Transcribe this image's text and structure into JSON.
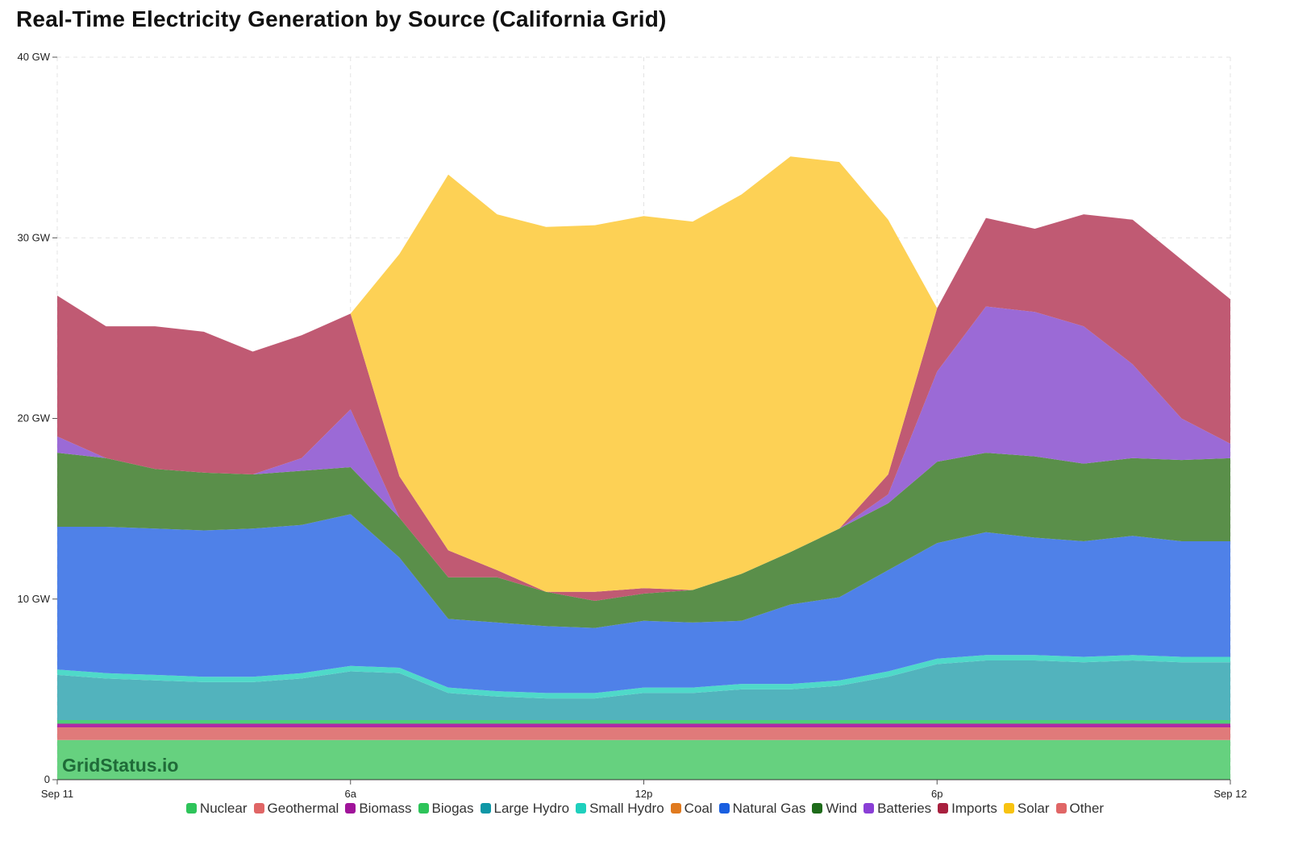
{
  "title": "Real-Time Electricity Generation by Source (California Grid)",
  "watermark": "GridStatus.io",
  "chart_data": {
    "type": "area",
    "stacked": true,
    "title": "Real-Time Electricity Generation by Source (California Grid)",
    "ylabel_unit": "GW",
    "ylim": [
      0,
      40
    ],
    "y_ticks": [
      {
        "value": 0,
        "label": "0"
      },
      {
        "value": 10,
        "label": "10 GW"
      },
      {
        "value": 20,
        "label": "20 GW"
      },
      {
        "value": 30,
        "label": "30 GW"
      },
      {
        "value": 40,
        "label": "40 GW"
      }
    ],
    "x_hours_range": [
      0,
      24
    ],
    "x_ticks": [
      {
        "hour": 0,
        "label": "Sep 11"
      },
      {
        "hour": 6,
        "label": "6a"
      },
      {
        "hour": 12,
        "label": "12p"
      },
      {
        "hour": 18,
        "label": "6p"
      },
      {
        "hour": 24,
        "label": "Sep 12"
      }
    ],
    "grid": true,
    "legend_position": "bottom",
    "x": [
      0,
      1,
      2,
      3,
      4,
      5,
      6,
      7,
      8,
      9,
      10,
      11,
      12,
      13,
      14,
      15,
      16,
      17,
      18,
      19,
      20,
      21,
      22,
      23,
      24
    ],
    "series": [
      {
        "name": "Nuclear",
        "color": "#66d17f",
        "swatch": "#2ec45a",
        "values": [
          2.2,
          2.2,
          2.2,
          2.2,
          2.2,
          2.2,
          2.2,
          2.2,
          2.2,
          2.2,
          2.2,
          2.2,
          2.2,
          2.2,
          2.2,
          2.2,
          2.2,
          2.2,
          2.2,
          2.2,
          2.2,
          2.2,
          2.2,
          2.2,
          2.2
        ]
      },
      {
        "name": "Geothermal",
        "color": "#e07a7a",
        "swatch": "#e06666",
        "values": [
          0.7,
          0.7,
          0.7,
          0.7,
          0.7,
          0.7,
          0.7,
          0.7,
          0.7,
          0.7,
          0.7,
          0.7,
          0.7,
          0.7,
          0.7,
          0.7,
          0.7,
          0.7,
          0.7,
          0.7,
          0.7,
          0.7,
          0.7,
          0.7,
          0.7
        ]
      },
      {
        "name": "Biomass",
        "color": "#b02aa6",
        "swatch": "#a0149a",
        "values": [
          0.2,
          0.2,
          0.2,
          0.2,
          0.2,
          0.2,
          0.2,
          0.2,
          0.2,
          0.2,
          0.2,
          0.2,
          0.2,
          0.2,
          0.2,
          0.2,
          0.2,
          0.2,
          0.2,
          0.2,
          0.2,
          0.2,
          0.2,
          0.2,
          0.2
        ]
      },
      {
        "name": "Biogas",
        "color": "#4fcf7a",
        "swatch": "#2ec45a",
        "values": [
          0.2,
          0.2,
          0.2,
          0.2,
          0.2,
          0.2,
          0.2,
          0.2,
          0.2,
          0.2,
          0.2,
          0.2,
          0.2,
          0.2,
          0.2,
          0.2,
          0.2,
          0.2,
          0.2,
          0.2,
          0.2,
          0.2,
          0.2,
          0.2,
          0.2
        ]
      },
      {
        "name": "Large Hydro",
        "color": "#52b3bd",
        "swatch": "#0f97a6",
        "values": [
          2.5,
          2.3,
          2.2,
          2.1,
          2.1,
          2.3,
          2.7,
          2.6,
          1.5,
          1.3,
          1.2,
          1.2,
          1.5,
          1.5,
          1.7,
          1.7,
          1.9,
          2.4,
          3.1,
          3.3,
          3.3,
          3.2,
          3.3,
          3.2,
          3.2
        ]
      },
      {
        "name": "Small Hydro",
        "color": "#4fd9c9",
        "swatch": "#1fd0bd",
        "values": [
          0.3,
          0.3,
          0.3,
          0.3,
          0.3,
          0.3,
          0.3,
          0.3,
          0.3,
          0.3,
          0.3,
          0.3,
          0.3,
          0.3,
          0.3,
          0.3,
          0.3,
          0.3,
          0.3,
          0.3,
          0.3,
          0.3,
          0.3,
          0.3,
          0.3
        ]
      },
      {
        "name": "Coal",
        "color": "#e58a2e",
        "swatch": "#e07a1f",
        "values": [
          0,
          0,
          0,
          0,
          0,
          0,
          0,
          0,
          0,
          0,
          0,
          0,
          0,
          0,
          0,
          0,
          0,
          0,
          0,
          0,
          0,
          0,
          0,
          0,
          0
        ]
      },
      {
        "name": "Natural Gas",
        "color": "#4f81e8",
        "swatch": "#1a5fe0",
        "values": [
          7.9,
          8.1,
          8.1,
          8.1,
          8.2,
          8.2,
          8.4,
          6.1,
          3.8,
          3.8,
          3.7,
          3.6,
          3.7,
          3.6,
          3.5,
          4.4,
          4.6,
          5.6,
          6.4,
          6.8,
          6.5,
          6.4,
          6.6,
          6.4,
          6.4
        ]
      },
      {
        "name": "Wind",
        "color": "#5a8f4a",
        "swatch": "#1e6b1a",
        "values": [
          4.1,
          3.8,
          3.3,
          3.2,
          3.0,
          3.0,
          2.6,
          2.2,
          2.3,
          2.5,
          1.9,
          1.5,
          1.5,
          1.8,
          2.6,
          2.9,
          3.8,
          3.7,
          4.5,
          4.4,
          4.5,
          4.3,
          4.3,
          4.5,
          4.6
        ]
      },
      {
        "name": "Batteries",
        "color": "#9b6ad6",
        "swatch": "#8a3fd6",
        "values": [
          0.9,
          0,
          0,
          0,
          0,
          0.7,
          3.2,
          0,
          0,
          0,
          0,
          0,
          0,
          0,
          0,
          0,
          0,
          0.5,
          5,
          8.1,
          8,
          7.6,
          5.2,
          2.3,
          0.8
        ]
      },
      {
        "name": "Imports",
        "color": "#c05a73",
        "swatch": "#a8203e",
        "values": [
          7.8,
          7.3,
          7.9,
          7.8,
          6.8,
          6.8,
          5.3,
          2.3,
          1.5,
          0.4,
          0,
          0.5,
          0.3,
          0,
          0,
          0,
          0,
          1.1,
          3.5,
          4.9,
          4.6,
          6.2,
          8,
          8.8,
          8
        ]
      },
      {
        "name": "Solar",
        "color": "#fdd155",
        "swatch": "#f8c311",
        "values": [
          0,
          0,
          0,
          0,
          0,
          0,
          0,
          12.3,
          20.8,
          19.7,
          20.2,
          20.3,
          20.6,
          20.4,
          21.0,
          21.9,
          20.3,
          14.1,
          0,
          0,
          0,
          0,
          0,
          0,
          0
        ]
      },
      {
        "name": "Other",
        "color": "#e07a7a",
        "swatch": "#e06666",
        "values": [
          0,
          0,
          0,
          0,
          0,
          0,
          0,
          0,
          0,
          0,
          0,
          0,
          0,
          0,
          0,
          0,
          0,
          0,
          0,
          0,
          0,
          0,
          0,
          0,
          0
        ]
      }
    ]
  }
}
